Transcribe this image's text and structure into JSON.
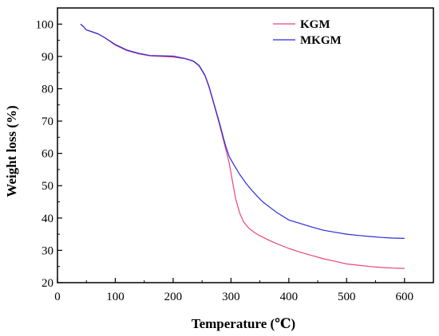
{
  "chart_data": {
    "type": "line",
    "xlabel": "Temperature (℃)",
    "ylabel": "Weight loss (%)",
    "xlim": [
      0,
      650
    ],
    "ylim": [
      20,
      105
    ],
    "x_ticks": [
      0,
      100,
      200,
      300,
      400,
      500,
      600
    ],
    "y_ticks": [
      20,
      30,
      40,
      50,
      60,
      70,
      80,
      90,
      100
    ],
    "grid": false,
    "legend_position": "top-right",
    "series": [
      {
        "name": "KGM",
        "color": "#e8457d",
        "x": [
          40,
          45,
          50,
          60,
          70,
          80,
          100,
          120,
          140,
          160,
          180,
          200,
          220,
          235,
          245,
          255,
          262,
          270,
          280,
          290,
          297,
          302,
          308,
          315,
          322,
          330,
          340,
          350,
          365,
          380,
          400,
          420,
          440,
          460,
          480,
          500,
          520,
          540,
          560,
          580,
          600
        ],
        "y": [
          100,
          99.2,
          98.2,
          97.6,
          97.0,
          96.0,
          93.5,
          91.8,
          90.8,
          90.2,
          90.0,
          89.8,
          89.3,
          88.5,
          87.0,
          84.0,
          80.5,
          75.5,
          69.0,
          62.0,
          57.0,
          52.0,
          46.0,
          41.5,
          38.8,
          37.0,
          35.6,
          34.5,
          33.2,
          32.0,
          30.6,
          29.4,
          28.4,
          27.4,
          26.6,
          25.8,
          25.4,
          25.0,
          24.7,
          24.5,
          24.4
        ]
      },
      {
        "name": "MKGM",
        "color": "#2a2ad8",
        "x": [
          40,
          45,
          50,
          60,
          70,
          80,
          100,
          120,
          140,
          160,
          180,
          200,
          220,
          235,
          245,
          255,
          262,
          270,
          280,
          290,
          297,
          305,
          315,
          325,
          335,
          345,
          355,
          365,
          380,
          400,
          420,
          440,
          460,
          480,
          500,
          520,
          540,
          560,
          580,
          600
        ],
        "y": [
          100,
          99.2,
          98.2,
          97.6,
          97.0,
          96.0,
          93.7,
          92.0,
          91.0,
          90.3,
          90.2,
          90.1,
          89.4,
          88.6,
          87.2,
          84.2,
          80.8,
          75.8,
          69.5,
          62.8,
          59.0,
          56.5,
          53.5,
          51.0,
          48.8,
          46.8,
          45.0,
          43.6,
          41.6,
          39.4,
          38.3,
          37.2,
          36.2,
          35.6,
          35.0,
          34.6,
          34.3,
          34.0,
          33.8,
          33.7
        ]
      }
    ]
  }
}
